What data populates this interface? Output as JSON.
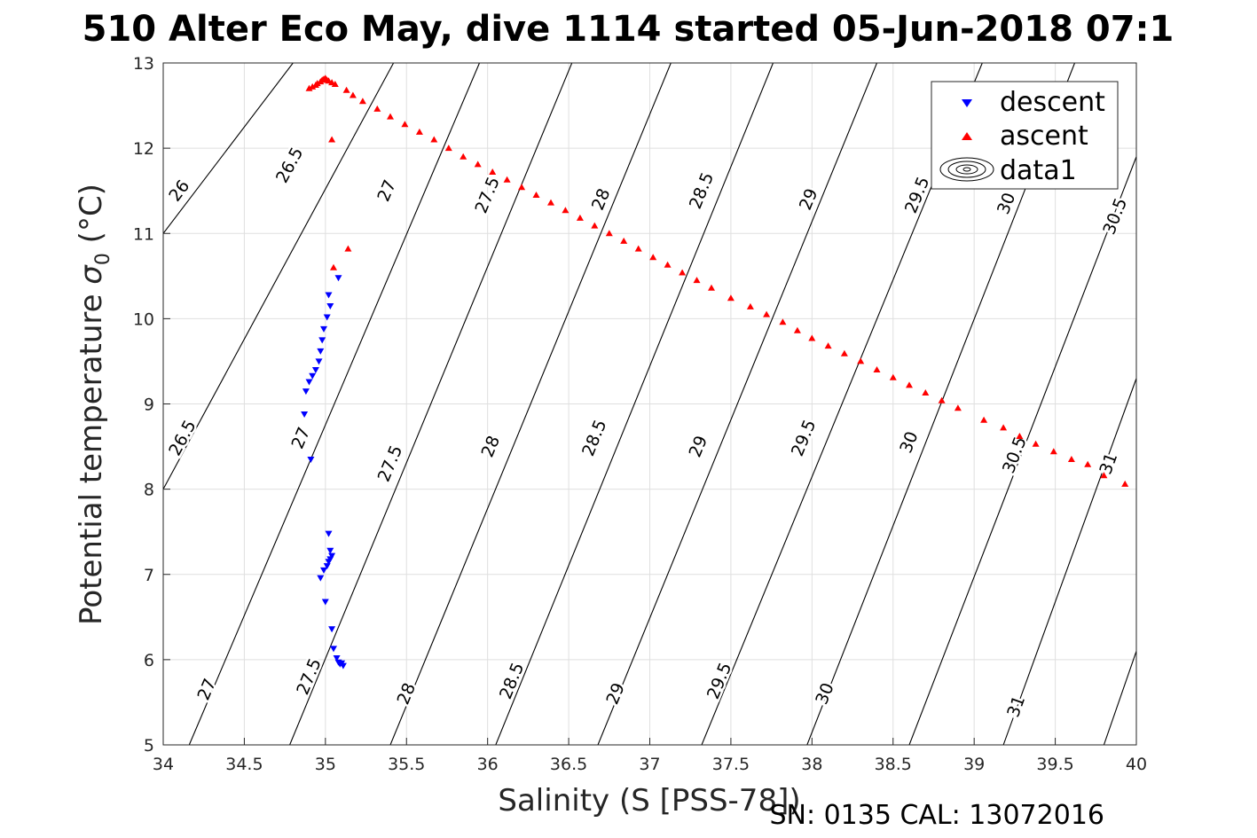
{
  "title": "510 Alter Eco May, dive 1114 started 05-Jun-2018 07:1",
  "footer": "SN: 0135  CAL: 13072016",
  "chart_data": {
    "type": "scatter",
    "title": "510 Alter Eco May, dive 1114 started 05-Jun-2018 07:1",
    "xlabel": "Salinity (S [PSS-78])",
    "ylabel": "Potential temperature σ 0 (°C)",
    "ylabel_main": "Potential temperature ",
    "ylabel_sigma": "σ",
    "ylabel_sub": "0",
    "ylabel_unit": " (°C)",
    "xlim": [
      34,
      40
    ],
    "ylim": [
      5,
      13
    ],
    "xticks": [
      "34",
      "34.5",
      "35",
      "35.5",
      "36",
      "36.5",
      "37",
      "37.5",
      "38",
      "38.5",
      "39",
      "39.5",
      "40"
    ],
    "yticks": [
      "5",
      "6",
      "7",
      "8",
      "9",
      "10",
      "11",
      "12",
      "13"
    ],
    "grid": true,
    "legend_position": "top-right",
    "series": [
      {
        "name": "descent",
        "marker": "triangle-down",
        "color": "#0000ff",
        "points": [
          [
            35.08,
            10.48
          ],
          [
            35.02,
            10.28
          ],
          [
            35.03,
            10.15
          ],
          [
            35.01,
            10.02
          ],
          [
            34.99,
            9.88
          ],
          [
            34.98,
            9.75
          ],
          [
            34.97,
            9.62
          ],
          [
            34.96,
            9.5
          ],
          [
            34.94,
            9.4
          ],
          [
            34.92,
            9.33
          ],
          [
            34.9,
            9.26
          ],
          [
            34.88,
            9.15
          ],
          [
            34.87,
            8.88
          ],
          [
            34.91,
            8.35
          ],
          [
            35.02,
            7.48
          ],
          [
            35.03,
            7.28
          ],
          [
            35.04,
            7.22
          ],
          [
            35.03,
            7.18
          ],
          [
            35.02,
            7.15
          ],
          [
            35.01,
            7.1
          ],
          [
            34.99,
            7.05
          ],
          [
            34.97,
            6.96
          ],
          [
            35.0,
            6.68
          ],
          [
            35.04,
            6.36
          ],
          [
            35.05,
            6.13
          ],
          [
            35.07,
            6.02
          ],
          [
            35.08,
            5.97
          ],
          [
            35.09,
            5.95
          ],
          [
            35.1,
            5.96
          ],
          [
            35.11,
            5.93
          ]
        ]
      },
      {
        "name": "ascent",
        "marker": "triangle-up",
        "color": "#ff0000",
        "points": [
          [
            34.9,
            12.7
          ],
          [
            34.92,
            12.72
          ],
          [
            34.94,
            12.74
          ],
          [
            34.95,
            12.76
          ],
          [
            34.97,
            12.78
          ],
          [
            34.98,
            12.8
          ],
          [
            34.99,
            12.81
          ],
          [
            35.0,
            12.82
          ],
          [
            35.01,
            12.8
          ],
          [
            35.02,
            12.79
          ],
          [
            35.04,
            12.77
          ],
          [
            35.06,
            12.75
          ],
          [
            35.04,
            12.1
          ],
          [
            35.13,
            12.68
          ],
          [
            35.17,
            12.62
          ],
          [
            35.23,
            12.55
          ],
          [
            35.32,
            12.46
          ],
          [
            35.4,
            12.37
          ],
          [
            35.49,
            12.28
          ],
          [
            35.58,
            12.19
          ],
          [
            35.67,
            12.1
          ],
          [
            35.76,
            12.0
          ],
          [
            35.85,
            11.9
          ],
          [
            35.94,
            11.81
          ],
          [
            36.03,
            11.72
          ],
          [
            36.12,
            11.63
          ],
          [
            36.21,
            11.54
          ],
          [
            36.3,
            11.45
          ],
          [
            36.39,
            11.36
          ],
          [
            36.48,
            11.27
          ],
          [
            36.57,
            11.18
          ],
          [
            36.66,
            11.09
          ],
          [
            36.75,
            11.0
          ],
          [
            36.84,
            10.91
          ],
          [
            36.93,
            10.82
          ],
          [
            37.02,
            10.72
          ],
          [
            37.11,
            10.63
          ],
          [
            37.2,
            10.54
          ],
          [
            37.29,
            10.45
          ],
          [
            37.38,
            10.36
          ],
          [
            37.5,
            10.24
          ],
          [
            37.62,
            10.14
          ],
          [
            37.72,
            10.05
          ],
          [
            37.82,
            9.96
          ],
          [
            37.91,
            9.86
          ],
          [
            38.0,
            9.77
          ],
          [
            38.1,
            9.68
          ],
          [
            38.2,
            9.59
          ],
          [
            38.3,
            9.5
          ],
          [
            38.4,
            9.4
          ],
          [
            38.5,
            9.31
          ],
          [
            38.6,
            9.22
          ],
          [
            38.7,
            9.13
          ],
          [
            38.8,
            9.04
          ],
          [
            38.9,
            8.95
          ],
          [
            39.06,
            8.81
          ],
          [
            39.18,
            8.72
          ],
          [
            39.28,
            8.62
          ],
          [
            39.38,
            8.53
          ],
          [
            39.49,
            8.44
          ],
          [
            39.6,
            8.35
          ],
          [
            39.7,
            8.29
          ],
          [
            39.8,
            8.16
          ],
          [
            39.93,
            8.06
          ],
          [
            35.05,
            10.6
          ],
          [
            35.14,
            10.82
          ]
        ]
      }
    ],
    "contours": [
      {
        "label": "26",
        "segments": [
          [
            [
              34.0,
              11.0
            ],
            [
              34.8,
              13.0
            ]
          ]
        ],
        "labels": [
          [
            34.1,
            11.5
          ]
        ]
      },
      {
        "label": "26.5",
        "segments": [
          [
            [
              34.0,
              8.0
            ],
            [
              35.42,
              13.0
            ]
          ]
        ],
        "labels": [
          [
            34.12,
            8.6
          ],
          [
            34.78,
            11.8
          ]
        ]
      },
      {
        "label": "27",
        "segments": [
          [
            [
              34.16,
              5.0
            ],
            [
              35.95,
              13.0
            ]
          ]
        ],
        "labels": [
          [
            34.27,
            5.65
          ],
          [
            34.85,
            8.6
          ],
          [
            35.38,
            11.5
          ]
        ]
      },
      {
        "label": "27.5",
        "segments": [
          [
            [
              34.78,
              5.0
            ],
            [
              36.52,
              13.0
            ]
          ]
        ],
        "labels": [
          [
            34.9,
            5.8
          ],
          [
            35.4,
            8.3
          ],
          [
            36.0,
            11.45
          ]
        ]
      },
      {
        "label": "28",
        "segments": [
          [
            [
              35.4,
              5.0
            ],
            [
              37.13,
              13.0
            ]
          ]
        ],
        "labels": [
          [
            35.5,
            5.6
          ],
          [
            36.02,
            8.5
          ],
          [
            36.7,
            11.4
          ]
        ]
      },
      {
        "label": "28.5",
        "segments": [
          [
            [
              36.05,
              5.0
            ],
            [
              37.76,
              13.0
            ]
          ]
        ],
        "labels": [
          [
            36.15,
            5.75
          ],
          [
            36.66,
            8.6
          ],
          [
            37.32,
            11.5
          ]
        ]
      },
      {
        "label": "29",
        "segments": [
          [
            [
              36.68,
              5.0
            ],
            [
              38.4,
              13.0
            ]
          ]
        ],
        "labels": [
          [
            36.79,
            5.6
          ],
          [
            37.3,
            8.5
          ],
          [
            37.98,
            11.4
          ]
        ]
      },
      {
        "label": "29.5",
        "segments": [
          [
            [
              37.32,
              5.0
            ],
            [
              39.05,
              13.0
            ]
          ]
        ],
        "labels": [
          [
            37.43,
            5.75
          ],
          [
            37.95,
            8.6
          ],
          [
            38.65,
            11.45
          ]
        ]
      },
      {
        "label": "30",
        "segments": [
          [
            [
              37.97,
              5.0
            ],
            [
              39.62,
              13.0
            ]
          ]
        ],
        "labels": [
          [
            38.08,
            5.6
          ],
          [
            38.6,
            8.55
          ],
          [
            39.2,
            11.35
          ]
        ]
      },
      {
        "label": "30.5",
        "segments": [
          [
            [
              38.6,
              5.0
            ],
            [
              40.0,
              11.9
            ]
          ]
        ],
        "labels": [
          [
            39.25,
            8.4
          ],
          [
            39.87,
            11.2
          ]
        ]
      },
      {
        "label": "31",
        "segments": [
          [
            [
              39.18,
              5.0
            ],
            [
              40.0,
              9.3
            ]
          ]
        ],
        "labels": [
          [
            39.26,
            5.45
          ],
          [
            39.83,
            8.3
          ]
        ]
      },
      {
        "label": "",
        "segments": [
          [
            [
              39.8,
              5.0
            ],
            [
              40.0,
              6.1
            ]
          ]
        ],
        "labels": []
      }
    ]
  },
  "legend": {
    "items": [
      {
        "label": "descent",
        "marker": "triangle-down",
        "color": "#0000ff"
      },
      {
        "label": "ascent",
        "marker": "triangle-up",
        "color": "#ff0000"
      },
      {
        "label": "data1",
        "marker": "contour",
        "color": "#000000"
      }
    ]
  }
}
